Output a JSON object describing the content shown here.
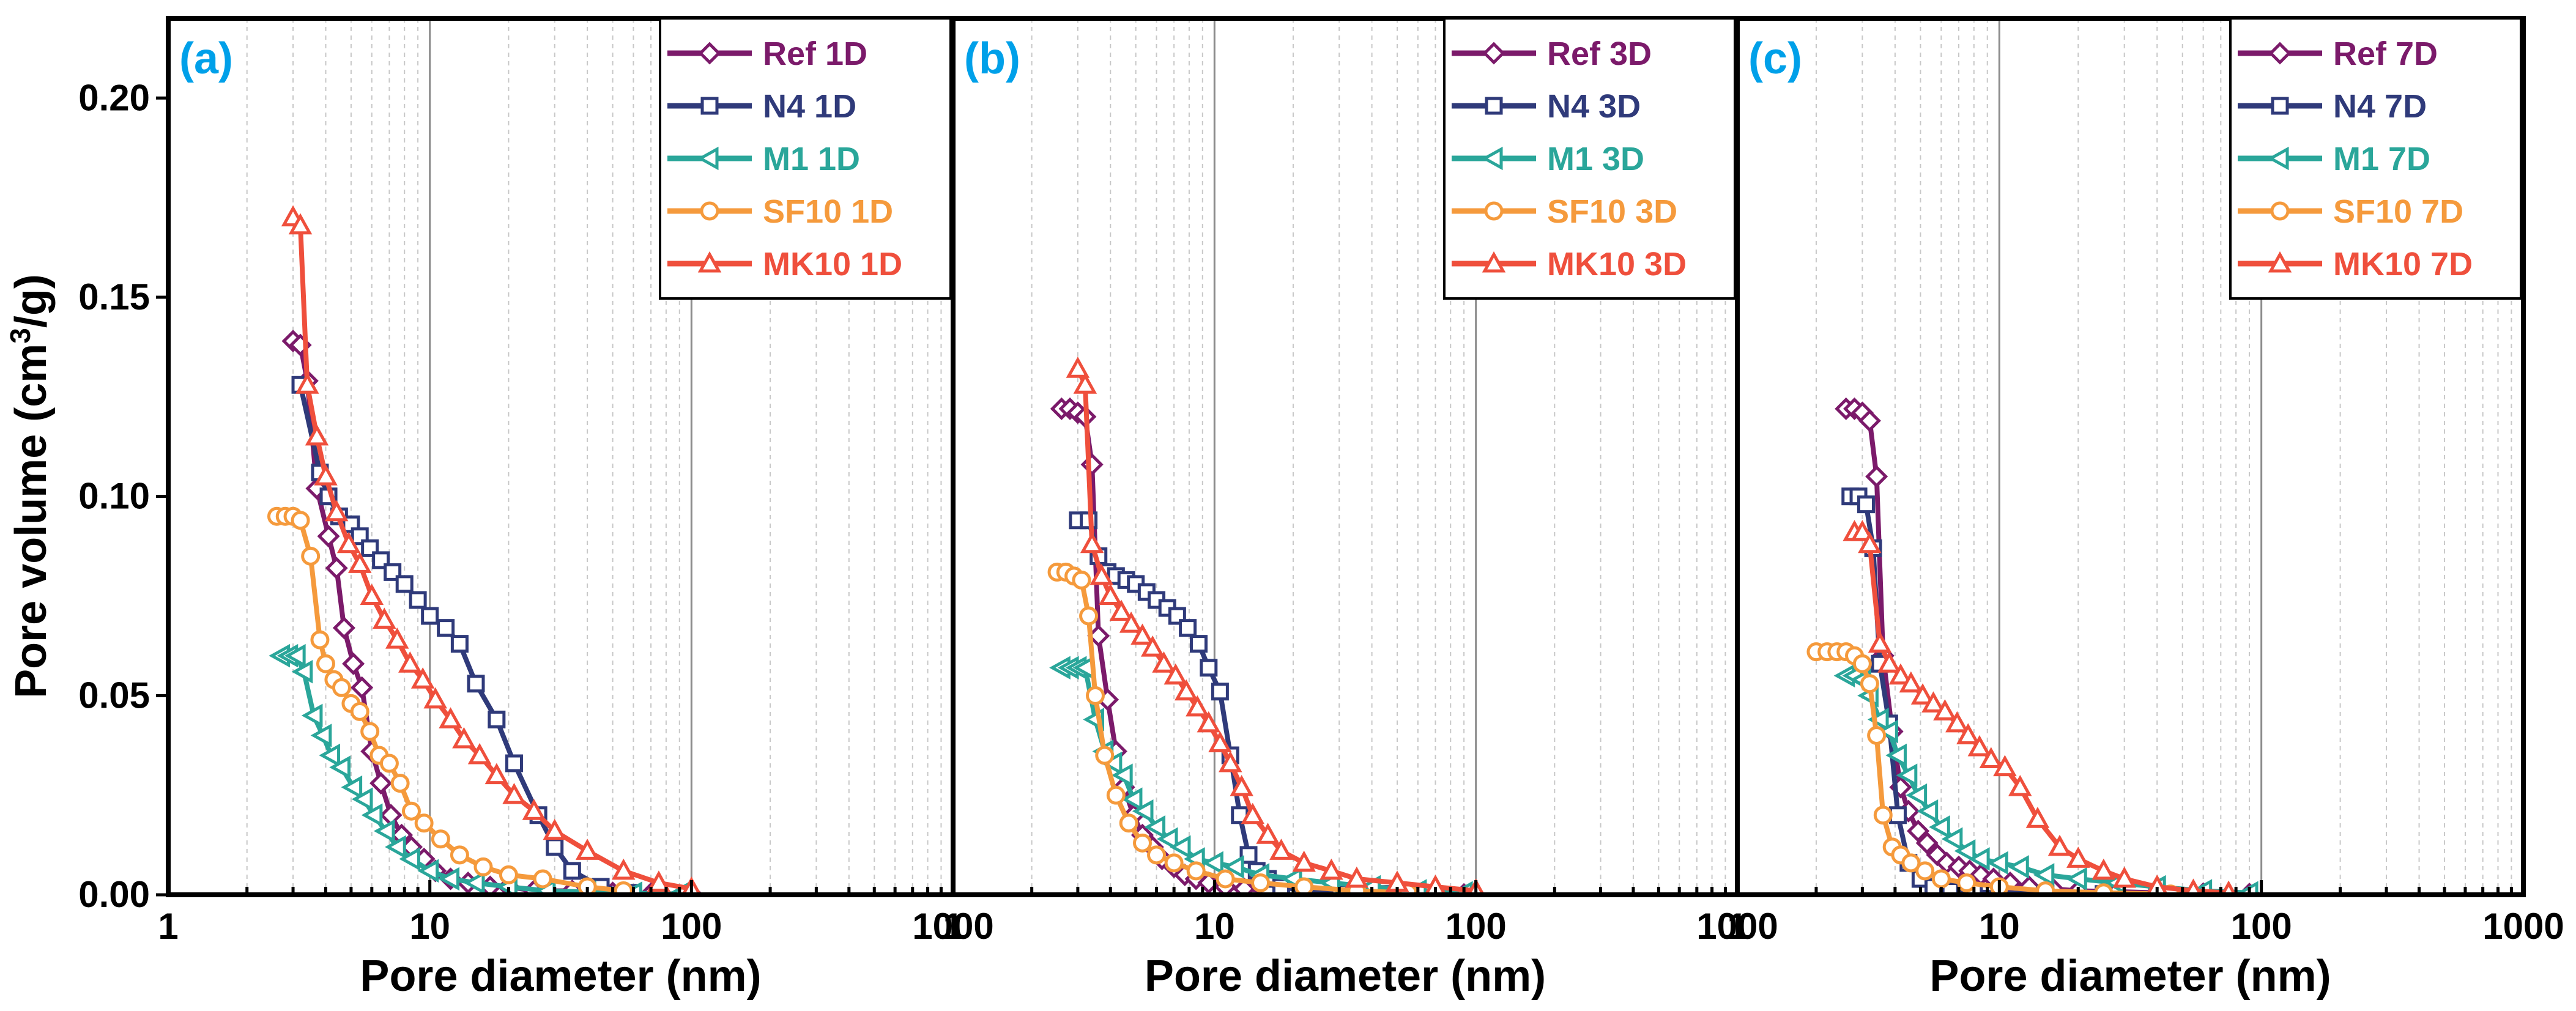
{
  "chart_data": {
    "type": "line",
    "figure": {
      "ylabel_prefix": "Pore volume (cm",
      "ylabel_sup": "3",
      "ylabel_suffix": "/g)",
      "xlabel": "Pore diameter (nm)",
      "xscale": "log",
      "xlim": [
        1,
        1000
      ],
      "ylim": [
        0,
        0.22
      ],
      "xticks": [
        1,
        10,
        100,
        1000
      ],
      "xtick_labels": [
        "1",
        "10",
        "100",
        "1000"
      ],
      "yticks": [
        0,
        0.05,
        0.1,
        0.15,
        0.2
      ],
      "ytick_labels": [
        "0.00",
        "0.05",
        "0.10",
        "0.15",
        "0.20"
      ]
    },
    "series_styles": [
      {
        "key": "Ref",
        "color": "#7b1a6a",
        "marker": "diamond"
      },
      {
        "key": "N4",
        "color": "#2f3a7a",
        "marker": "square"
      },
      {
        "key": "M1",
        "color": "#2aa69a",
        "marker": "triangle-left"
      },
      {
        "key": "SF10",
        "color": "#f59a3c",
        "marker": "circle"
      },
      {
        "key": "MK10",
        "color": "#ef4f3c",
        "marker": "triangle-up"
      }
    ],
    "panels": [
      {
        "label": "(a)",
        "series": [
          {
            "name": "Ref 1D",
            "x": [
              3.0,
              3.2,
              3.4,
              3.7,
              4.1,
              4.4,
              4.7,
              5.1,
              5.5,
              6.0,
              6.5,
              7.1,
              7.8,
              8.5,
              9.5,
              10.5,
              12,
              14,
              17,
              20,
              25,
              35,
              50,
              70,
              100
            ],
            "y": [
              0.139,
              0.138,
              0.129,
              0.102,
              0.09,
              0.082,
              0.067,
              0.058,
              0.052,
              0.036,
              0.028,
              0.02,
              0.015,
              0.012,
              0.009,
              0.006,
              0.004,
              0.003,
              0.002,
              0.002,
              0.001,
              0.001,
              0.0005,
              0.0003,
              0.0002
            ]
          },
          {
            "name": "N4 1D",
            "x": [
              3.2,
              3.8,
              4.1,
              4.5,
              5.0,
              5.4,
              5.9,
              6.5,
              7.2,
              8.0,
              9.0,
              10,
              11.5,
              13,
              15,
              18,
              21,
              26,
              30,
              35,
              45,
              60
            ],
            "y": [
              0.128,
              0.106,
              0.1,
              0.095,
              0.093,
              0.09,
              0.087,
              0.084,
              0.081,
              0.078,
              0.074,
              0.07,
              0.067,
              0.063,
              0.053,
              0.044,
              0.033,
              0.02,
              0.012,
              0.006,
              0.002,
              0.0005
            ]
          },
          {
            "name": "M1 1D",
            "x": [
              2.7,
              2.9,
              3.1,
              3.3,
              3.6,
              3.9,
              4.2,
              4.6,
              5.1,
              5.6,
              6.1,
              6.8,
              7.5,
              8.5,
              10,
              12,
              15,
              20,
              28,
              40,
              60,
              90
            ],
            "y": [
              0.06,
              0.06,
              0.06,
              0.056,
              0.045,
              0.04,
              0.035,
              0.032,
              0.027,
              0.024,
              0.02,
              0.016,
              0.012,
              0.009,
              0.006,
              0.004,
              0.003,
              0.002,
              0.001,
              0.0007,
              0.0004,
              0.0002
            ]
          },
          {
            "name": "SF10 1D",
            "x": [
              2.6,
              2.8,
              3.0,
              3.2,
              3.5,
              3.8,
              4.0,
              4.3,
              4.6,
              5.0,
              5.4,
              5.9,
              6.4,
              7.0,
              7.7,
              8.5,
              9.5,
              11,
              13,
              16,
              20,
              27,
              40,
              55
            ],
            "y": [
              0.095,
              0.095,
              0.095,
              0.094,
              0.085,
              0.064,
              0.058,
              0.054,
              0.052,
              0.048,
              0.046,
              0.041,
              0.035,
              0.033,
              0.028,
              0.021,
              0.018,
              0.014,
              0.01,
              0.007,
              0.005,
              0.004,
              0.002,
              0.001
            ]
          },
          {
            "name": "MK10 1D",
            "x": [
              3.0,
              3.2,
              3.4,
              3.7,
              4.0,
              4.4,
              4.9,
              5.4,
              6.0,
              6.7,
              7.5,
              8.4,
              9.4,
              10.5,
              12,
              13.5,
              15.5,
              18,
              21,
              25,
              30,
              40,
              55,
              75,
              100
            ],
            "y": [
              0.17,
              0.168,
              0.128,
              0.115,
              0.105,
              0.096,
              0.088,
              0.083,
              0.075,
              0.069,
              0.064,
              0.058,
              0.054,
              0.049,
              0.044,
              0.039,
              0.035,
              0.03,
              0.025,
              0.021,
              0.016,
              0.011,
              0.006,
              0.003,
              0.0015
            ]
          }
        ]
      },
      {
        "label": "(b)",
        "series": [
          {
            "name": "Ref 3D",
            "x": [
              2.6,
              2.8,
              3.0,
              3.2,
              3.4,
              3.6,
              3.9,
              4.2,
              4.5,
              4.9,
              5.3,
              5.8,
              6.3,
              7.0,
              7.7,
              8.5,
              9.5,
              11,
              13,
              16,
              20,
              28,
              40,
              60,
              90
            ],
            "y": [
              0.122,
              0.122,
              0.121,
              0.12,
              0.108,
              0.065,
              0.049,
              0.036,
              0.027,
              0.02,
              0.015,
              0.012,
              0.009,
              0.007,
              0.005,
              0.004,
              0.003,
              0.002,
              0.0015,
              0.001,
              0.0008,
              0.0005,
              0.0003,
              0.0002,
              0.0001
            ]
          },
          {
            "name": "N4 3D",
            "x": [
              3.0,
              3.3,
              3.6,
              3.9,
              4.2,
              4.6,
              5.0,
              5.5,
              6.0,
              6.6,
              7.2,
              7.9,
              8.7,
              9.5,
              10.5,
              11.5,
              12.5,
              13.5,
              14.5,
              16,
              18,
              22,
              30,
              45
            ],
            "y": [
              0.094,
              0.094,
              0.085,
              0.081,
              0.08,
              0.079,
              0.078,
              0.076,
              0.074,
              0.072,
              0.07,
              0.067,
              0.063,
              0.057,
              0.051,
              0.035,
              0.02,
              0.01,
              0.006,
              0.004,
              0.002,
              0.001,
              0.0005,
              0.0002
            ]
          },
          {
            "name": "M1 3D",
            "x": [
              2.6,
              2.8,
              3.0,
              3.2,
              3.5,
              3.8,
              4.1,
              4.5,
              4.9,
              5.4,
              6.0,
              6.7,
              7.5,
              8.5,
              10,
              12,
              15,
              20,
              28,
              40,
              60,
              90
            ],
            "y": [
              0.057,
              0.057,
              0.057,
              0.057,
              0.044,
              0.036,
              0.033,
              0.03,
              0.024,
              0.021,
              0.017,
              0.014,
              0.012,
              0.009,
              0.008,
              0.007,
              0.005,
              0.004,
              0.003,
              0.002,
              0.001,
              0.0005
            ]
          },
          {
            "name": "SF10 3D",
            "x": [
              2.5,
              2.7,
              2.9,
              3.1,
              3.3,
              3.5,
              3.8,
              4.2,
              4.7,
              5.3,
              6.0,
              7.0,
              8.5,
              11,
              15,
              22,
              35,
              55
            ],
            "y": [
              0.081,
              0.081,
              0.08,
              0.079,
              0.07,
              0.05,
              0.035,
              0.025,
              0.018,
              0.013,
              0.01,
              0.008,
              0.006,
              0.004,
              0.003,
              0.002,
              0.001,
              0.0005
            ]
          },
          {
            "name": "MK10 3D",
            "x": [
              3.0,
              3.2,
              3.4,
              3.7,
              4.0,
              4.4,
              4.8,
              5.3,
              5.8,
              6.4,
              7.1,
              7.8,
              8.6,
              9.5,
              10.5,
              11.5,
              12.7,
              14,
              16,
              18,
              22,
              28,
              35,
              50,
              70,
              100
            ],
            "y": [
              0.132,
              0.128,
              0.088,
              0.08,
              0.075,
              0.071,
              0.068,
              0.065,
              0.062,
              0.058,
              0.055,
              0.051,
              0.047,
              0.043,
              0.038,
              0.033,
              0.027,
              0.02,
              0.015,
              0.011,
              0.008,
              0.006,
              0.004,
              0.003,
              0.002,
              0.001
            ]
          }
        ]
      },
      {
        "label": "(c)",
        "series": [
          {
            "name": "Ref 7D",
            "x": [
              2.6,
              2.8,
              3.0,
              3.2,
              3.4,
              3.6,
              3.9,
              4.2,
              4.5,
              4.9,
              5.3,
              5.8,
              6.3,
              7.0,
              7.7,
              8.5,
              9.5,
              11,
              13,
              16,
              20,
              28,
              40,
              60,
              90
            ],
            "y": [
              0.122,
              0.122,
              0.121,
              0.119,
              0.105,
              0.06,
              0.041,
              0.027,
              0.021,
              0.016,
              0.013,
              0.01,
              0.008,
              0.007,
              0.006,
              0.005,
              0.004,
              0.003,
              0.002,
              0.0015,
              0.001,
              0.0008,
              0.0005,
              0.0003,
              0.0002
            ]
          },
          {
            "name": "N4 7D",
            "x": [
              2.7,
              2.9,
              3.1,
              3.3,
              3.5,
              3.8,
              4.1,
              4.5,
              5.0,
              5.6,
              6.5,
              8.0,
              10,
              15,
              25,
              40
            ],
            "y": [
              0.1,
              0.1,
              0.098,
              0.087,
              0.058,
              0.043,
              0.02,
              0.008,
              0.004,
              0.002,
              0.001,
              0.0007,
              0.0005,
              0.0003,
              0.0002,
              0.0001
            ]
          },
          {
            "name": "M1 7D",
            "x": [
              2.6,
              2.8,
              3.0,
              3.2,
              3.5,
              3.8,
              4.1,
              4.5,
              4.9,
              5.4,
              6.0,
              6.7,
              7.5,
              8.5,
              10,
              12,
              15,
              20,
              28,
              40,
              60,
              90
            ],
            "y": [
              0.055,
              0.055,
              0.054,
              0.05,
              0.044,
              0.041,
              0.035,
              0.03,
              0.025,
              0.021,
              0.017,
              0.014,
              0.011,
              0.009,
              0.008,
              0.007,
              0.005,
              0.004,
              0.003,
              0.002,
              0.001,
              0.0005
            ]
          },
          {
            "name": "SF10 7D",
            "x": [
              2.0,
              2.2,
              2.4,
              2.6,
              2.8,
              3.0,
              3.2,
              3.4,
              3.6,
              3.9,
              4.2,
              4.6,
              5.2,
              6.0,
              7.5,
              10,
              15,
              25,
              45
            ],
            "y": [
              0.061,
              0.061,
              0.061,
              0.061,
              0.06,
              0.058,
              0.053,
              0.04,
              0.02,
              0.012,
              0.01,
              0.008,
              0.006,
              0.004,
              0.003,
              0.002,
              0.001,
              0.0005,
              0.0002
            ]
          },
          {
            "name": "MK10 7D",
            "x": [
              2.8,
              3.0,
              3.2,
              3.5,
              3.8,
              4.2,
              4.6,
              5.1,
              5.6,
              6.2,
              6.9,
              7.6,
              8.4,
              9.3,
              10.5,
              12,
              14,
              17,
              20,
              25,
              30,
              40,
              55,
              75
            ],
            "y": [
              0.091,
              0.091,
              0.088,
              0.063,
              0.058,
              0.055,
              0.053,
              0.05,
              0.048,
              0.046,
              0.043,
              0.04,
              0.037,
              0.034,
              0.032,
              0.027,
              0.019,
              0.012,
              0.009,
              0.006,
              0.004,
              0.002,
              0.001,
              0.0005
            ]
          }
        ]
      }
    ]
  }
}
